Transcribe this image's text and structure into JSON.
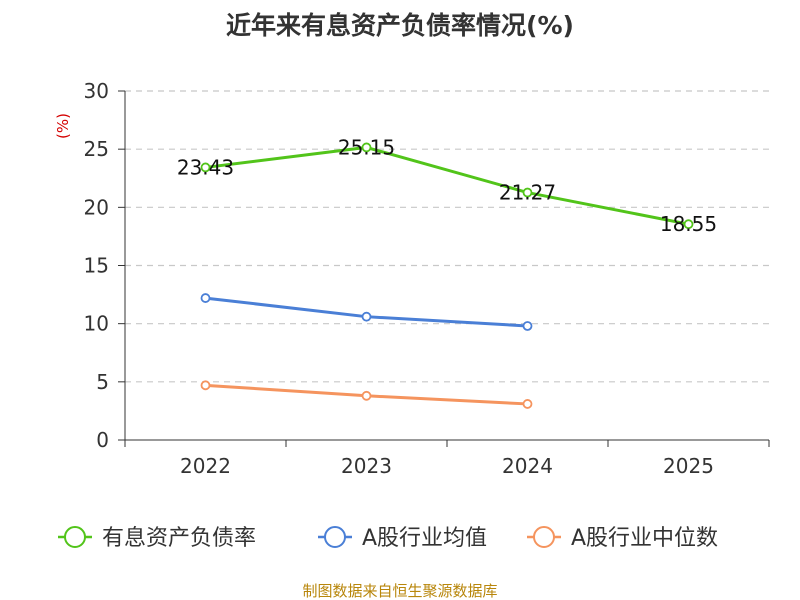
{
  "chart_data": {
    "type": "line",
    "title": "近年来有息资产负债率情况(%)",
    "ylabel": "(%)",
    "xlabel": "",
    "categories": [
      "2022",
      "2023",
      "2024",
      "2025"
    ],
    "ylim": [
      0,
      30
    ],
    "yticks": [
      0,
      5,
      10,
      15,
      20,
      25,
      30
    ],
    "grid": true,
    "legend_position": "bottom",
    "series": [
      {
        "name": "有息资产负债率",
        "color": "#52c41a",
        "values": [
          23.43,
          25.15,
          21.27,
          18.55
        ],
        "labels": [
          "23.43",
          "25.15",
          "21.27",
          "18.55"
        ]
      },
      {
        "name": "A股行业均值",
        "color": "#4a7fd6",
        "values": [
          12.2,
          10.6,
          9.8,
          null
        ]
      },
      {
        "name": "A股行业中位数",
        "color": "#f5945e",
        "values": [
          4.7,
          3.8,
          3.1,
          null
        ]
      }
    ]
  },
  "footer": {
    "source": "制图数据来自恒生聚源数据库"
  }
}
